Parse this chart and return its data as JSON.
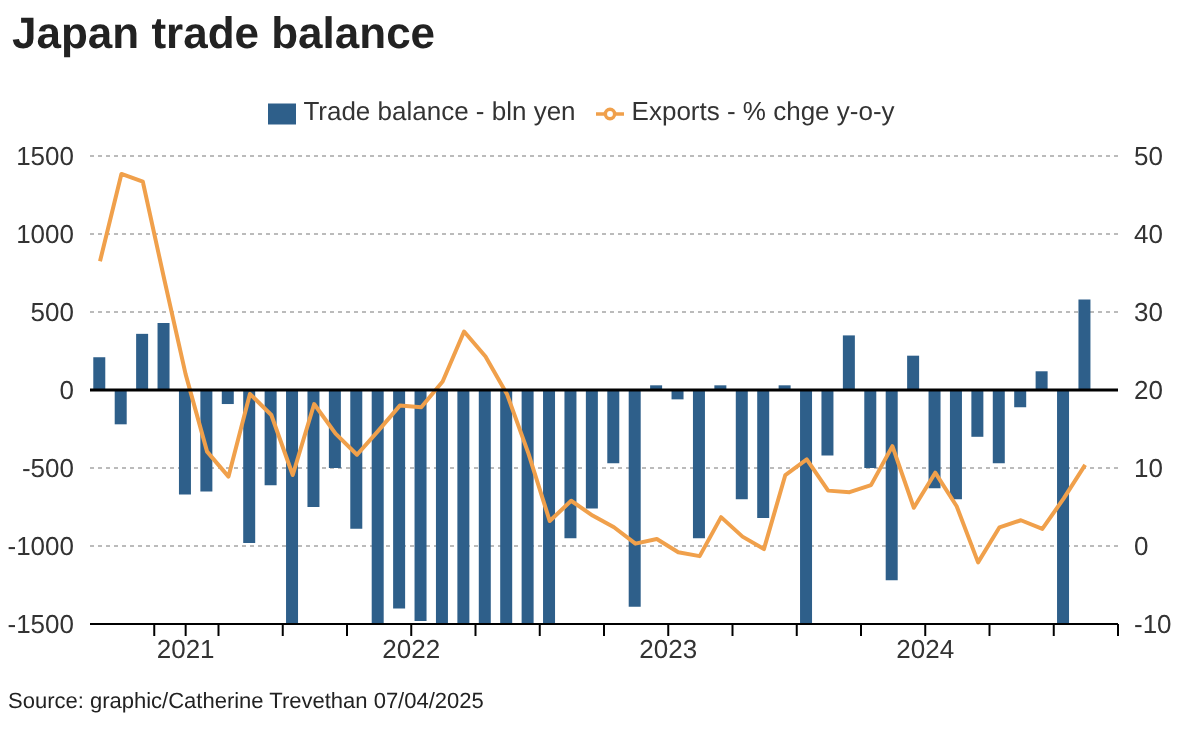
{
  "chart_data": {
    "type": "bar",
    "title": "Japan trade balance",
    "x": [
      "2021-04-15",
      "2021-05-15",
      "2021-06-15",
      "2021-07-15",
      "2021-08-15",
      "2021-09-15",
      "2021-10-15",
      "2021-11-15",
      "2021-12-15",
      "2022-01-15",
      "2022-02-15",
      "2022-03-15",
      "2022-04-15",
      "2022-05-15",
      "2022-06-15",
      "2022-07-15",
      "2022-08-15",
      "2022-09-15",
      "2022-10-15",
      "2022-11-15",
      "2022-12-15",
      "2023-01-15",
      "2023-02-15",
      "2023-03-15",
      "2023-04-15",
      "2023-05-15",
      "2023-06-15",
      "2023-07-15",
      "2023-08-15",
      "2023-09-15",
      "2023-10-15",
      "2023-11-15",
      "2023-12-15",
      "2024-01-15",
      "2024-02-15",
      "2024-03-15",
      "2024-04-15",
      "2024-05-15",
      "2024-06-15",
      "2024-07-15",
      "2024-08-15",
      "2024-09-15",
      "2024-10-15",
      "2024-11-15",
      "2024-12-15",
      "2025-01-15",
      "2025-02-15"
    ],
    "series": [
      {
        "name": "Trade balance - bln yen",
        "axis": "y",
        "color": "#2e5f8a",
        "values": [
          210,
          -220,
          360,
          430,
          -670,
          -650,
          -90,
          -980,
          -610,
          -1500,
          -750,
          -500,
          -890,
          -1500,
          -1400,
          -1480,
          -1500,
          -1500,
          -1500,
          -1500,
          -1500,
          -1500,
          -950,
          -760,
          -470,
          -1390,
          30,
          -60,
          -950,
          30,
          -700,
          -820,
          30,
          -1500,
          -420,
          350,
          -500,
          -1220,
          220,
          -630,
          -700,
          -300,
          -470,
          -110,
          120,
          -1500,
          580
        ]
      },
      {
        "name": "Exports - % chge y-o-y",
        "type": "line",
        "axis": "y2",
        "color": "#f0a04b",
        "values": [
          36.5,
          47.7,
          46.7,
          34.2,
          22,
          12.1,
          8.9,
          19.5,
          16.8,
          9.1,
          18.2,
          14.4,
          11.7,
          14.8,
          18.0,
          17.8,
          21.1,
          27.5,
          24.3,
          19.5,
          11.9,
          3.2,
          5.8,
          3.9,
          2.4,
          0.3,
          0.9,
          -0.8,
          -1.3,
          3.7,
          1.2,
          -0.4,
          9.1,
          11.1,
          7.1,
          6.9,
          7.8,
          12.8,
          4.9,
          9.4,
          5.1,
          -2.1,
          2.4,
          3.3,
          2.2,
          6.1,
          10.4
        ]
      }
    ],
    "xlim": [
      "2021-04",
      "2025-04"
    ],
    "xticks": [
      {
        "value": "2021-07",
        "label": null
      },
      {
        "value": "2021-08-15",
        "label": "2021"
      },
      {
        "value": "2021-10",
        "label": null
      },
      {
        "value": "2022-01",
        "label": null
      },
      {
        "value": "2022-04",
        "label": null
      },
      {
        "value": "2022-07",
        "label": "2022"
      },
      {
        "value": "2022-10",
        "label": null
      },
      {
        "value": "2023-01",
        "label": null
      },
      {
        "value": "2023-04",
        "label": null
      },
      {
        "value": "2023-07",
        "label": "2023"
      },
      {
        "value": "2023-10",
        "label": null
      },
      {
        "value": "2024-01",
        "label": null
      },
      {
        "value": "2024-04",
        "label": null
      },
      {
        "value": "2024-07",
        "label": "2024"
      },
      {
        "value": "2024-10",
        "label": null
      },
      {
        "value": "2025-01",
        "label": null
      },
      {
        "value": "2025-04",
        "label": null
      }
    ],
    "ylim": [
      -1500,
      1500
    ],
    "yticks": [
      -1500,
      -1000,
      -500,
      0,
      500,
      1000,
      1500
    ],
    "y2lim": [
      -10,
      50
    ],
    "y2ticks": [
      -10,
      0,
      10,
      20,
      30,
      40,
      50
    ],
    "ref_lines": [
      {
        "axis": "y",
        "value": 0,
        "color": "#000000"
      }
    ],
    "grid": "y",
    "legend": "top",
    "marker": "none",
    "line_style": "solid",
    "annotations": [
      "Source: graphic/Catherine Trevethan 07/04/2025"
    ]
  }
}
